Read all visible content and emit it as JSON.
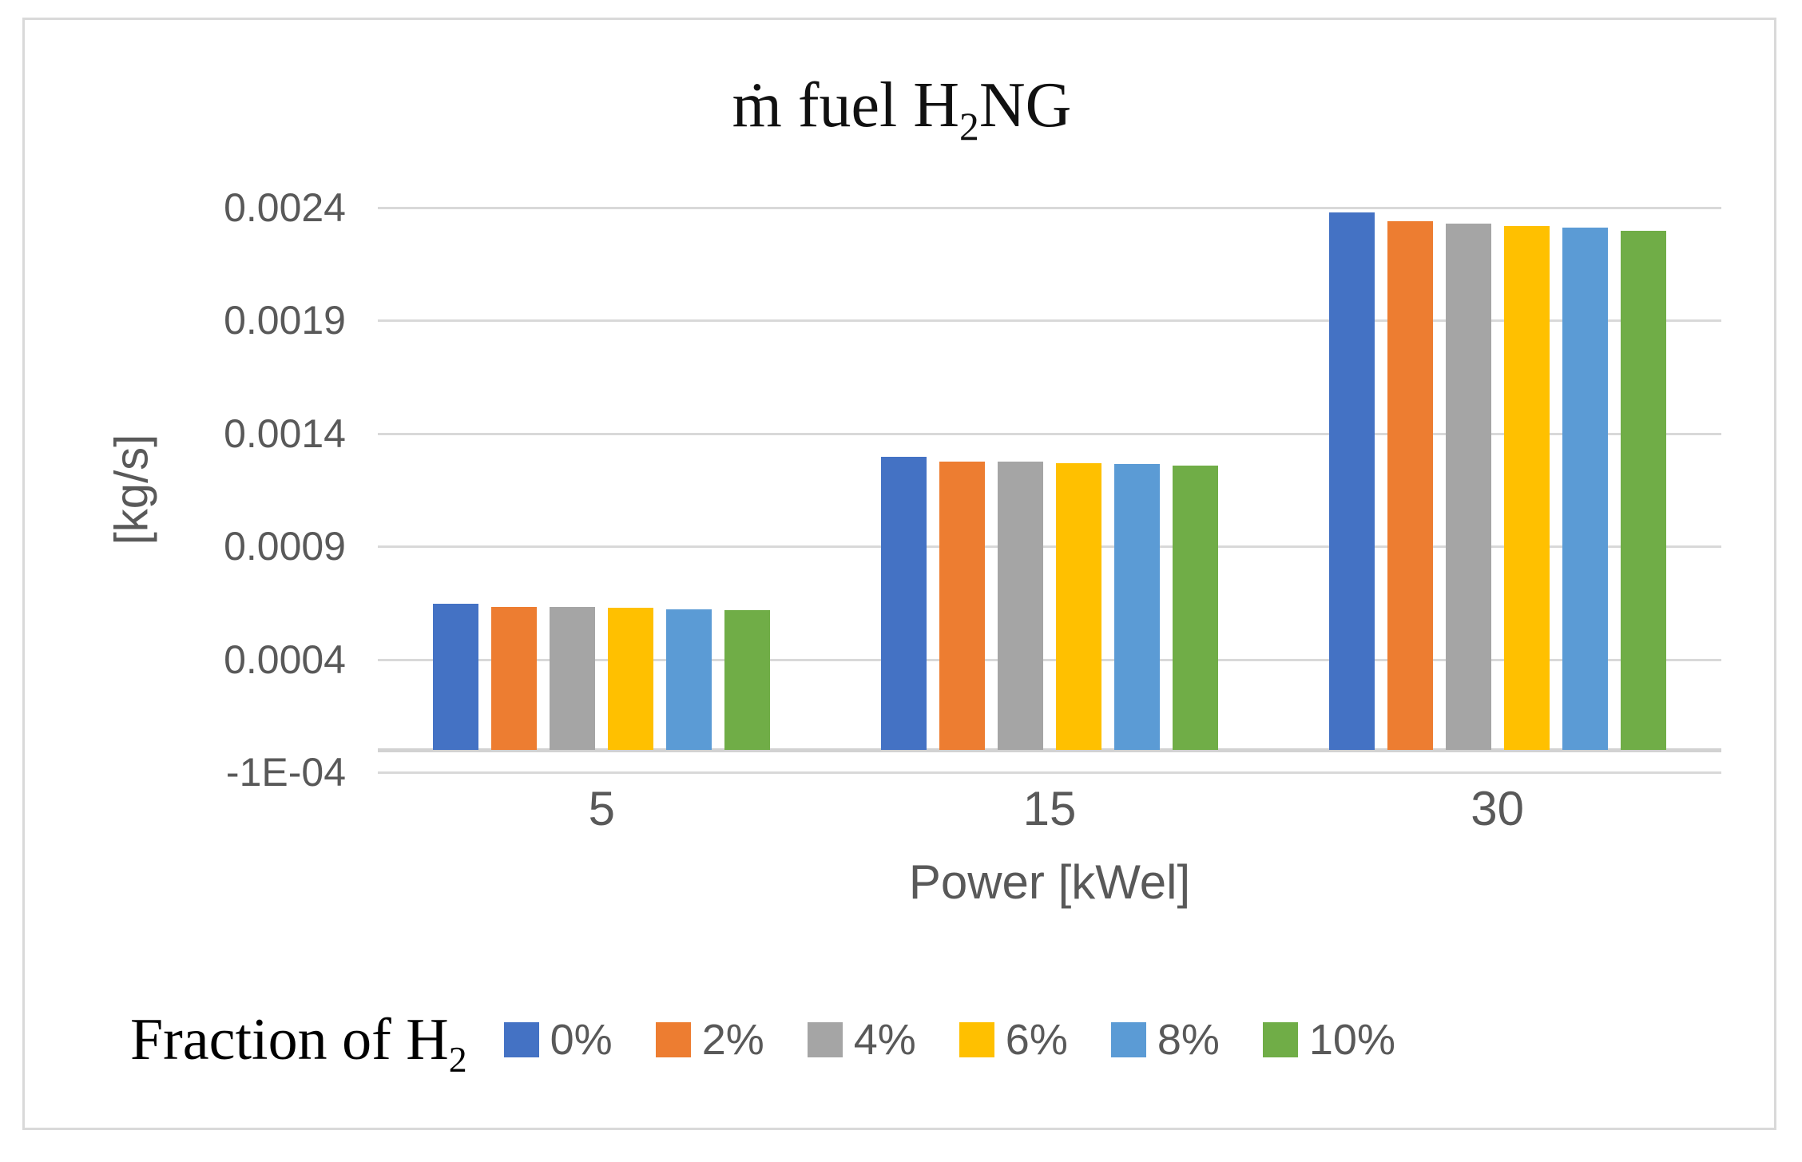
{
  "figure": {
    "title": {
      "prefix": "ṁ fuel H",
      "sub": "2",
      "suffix": "NG"
    },
    "legend_caption": {
      "prefix": "Fraction of H",
      "sub": "2"
    }
  },
  "chart_data": {
    "type": "bar",
    "title": "ṁ fuel H2NG",
    "xlabel": "Power [kWel]",
    "ylabel": "[kg/s]",
    "categories": [
      "5",
      "15",
      "30"
    ],
    "y_ticks": [
      "0.0024",
      "0.0019",
      "0.0014",
      "0.0009",
      "0.0004",
      "-1E-04"
    ],
    "ylim": [
      -0.0001,
      0.0024
    ],
    "y_grid_step": 0.0005,
    "grid": true,
    "legend_title": "Fraction of H2",
    "legend_position": "bottom",
    "series": [
      {
        "name": "0%",
        "color": "#4472C4",
        "values": [
          0.000647,
          0.001298,
          0.00238
        ]
      },
      {
        "name": "2%",
        "color": "#ED7D31",
        "values": [
          0.000633,
          0.001277,
          0.002341
        ]
      },
      {
        "name": "4%",
        "color": "#A5A5A5",
        "values": [
          0.000631,
          0.001274,
          0.002331
        ]
      },
      {
        "name": "6%",
        "color": "#FFC000",
        "values": [
          0.000628,
          0.00127,
          0.00232
        ]
      },
      {
        "name": "8%",
        "color": "#5B9BD5",
        "values": [
          0.000622,
          0.001265,
          0.002312
        ]
      },
      {
        "name": "10%",
        "color": "#70AD47",
        "values": [
          0.000619,
          0.001258,
          0.002299
        ]
      }
    ]
  }
}
